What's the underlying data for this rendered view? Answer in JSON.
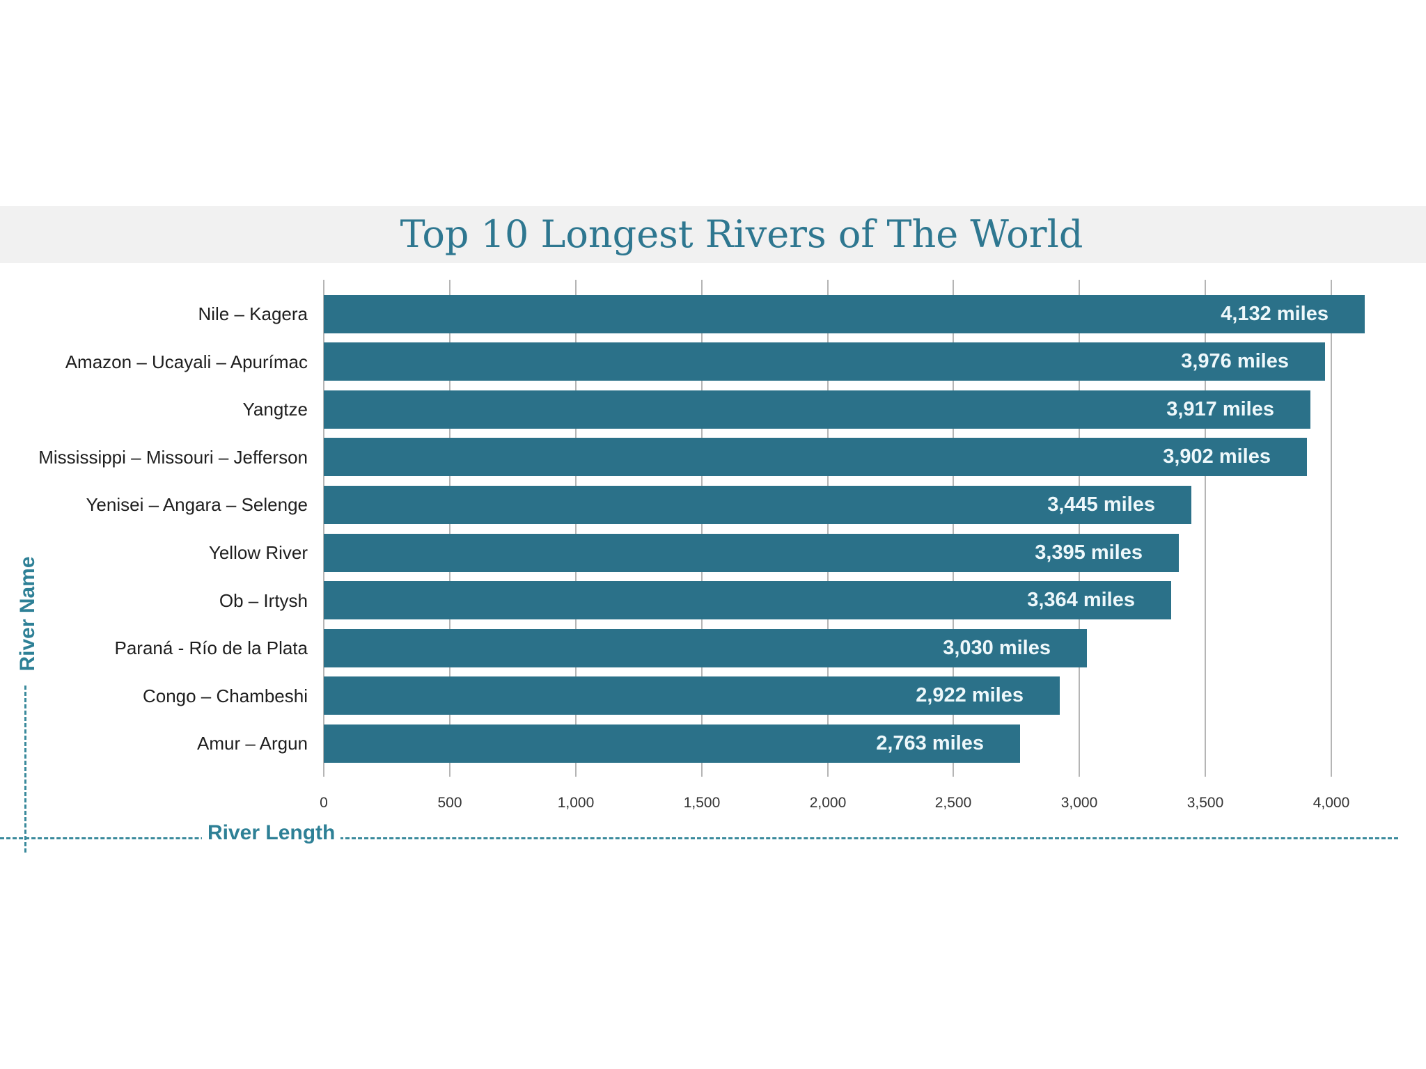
{
  "chart_data": {
    "type": "bar",
    "orientation": "horizontal",
    "title": "Top 10 Longest Rivers of The World",
    "xlabel": "River Length",
    "ylabel": "River Name",
    "xlim": [
      0,
      4000
    ],
    "x_ticks": [
      "0",
      "500",
      "1,000",
      "1,500",
      "2,000",
      "2,500",
      "3,000",
      "3,500",
      "4,000"
    ],
    "grid": true,
    "legend": null,
    "bar_color": "#2b7189",
    "title_color": "#2e7790",
    "categories": [
      "Nile – Kagera",
      "Amazon – Ucayali – Apurímac",
      "Yangtze",
      "Mississippi – Missouri – Jefferson",
      "Yenisei – Angara – Selenge",
      "Yellow River",
      "Ob – Irtysh",
      "Paraná - Río de la Plata",
      "Congo – Chambeshi",
      "Amur – Argun"
    ],
    "values": [
      4132,
      3976,
      3917,
      3902,
      3445,
      3395,
      3364,
      3030,
      2922,
      2763
    ],
    "data_labels": [
      "4,132 miles",
      "3,976 miles",
      "3,917 miles",
      "3,902 miles",
      "3,445 miles",
      "3,395 miles",
      "3,364 miles",
      "3,030 miles",
      "2,922 miles",
      "2,763 miles"
    ],
    "unit": "miles"
  }
}
